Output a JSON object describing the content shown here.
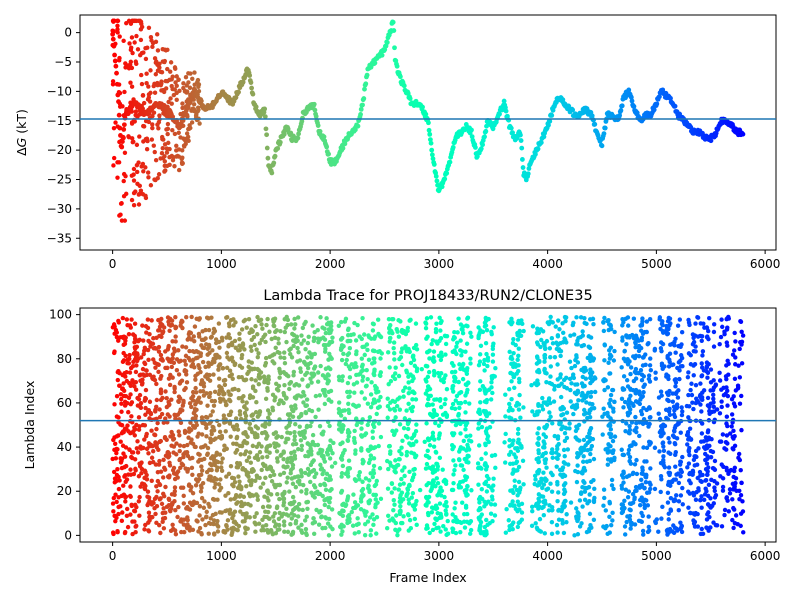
{
  "chart_data": [
    {
      "type": "scatter",
      "title": "",
      "xlabel": "",
      "ylabel": "ΔG (kT)",
      "xlim": [
        -300,
        6100
      ],
      "ylim": [
        -37,
        3
      ],
      "xticks": [
        0,
        1000,
        2000,
        3000,
        4000,
        5000,
        6000
      ],
      "yticks": [
        -35,
        -30,
        -25,
        -20,
        -15,
        -10,
        -5,
        0
      ],
      "hline": -14.7,
      "colormap": "rainbow (red → orange → yellow-green → cyan → blue → violet, early frames to late frames)",
      "n_frames": 5800,
      "trace_anchors": {
        "x": [
          0,
          40,
          80,
          120,
          200,
          300,
          400,
          500,
          620,
          750,
          850,
          950,
          1000,
          1100,
          1200,
          1250,
          1300,
          1350,
          1400,
          1430,
          1460,
          1500,
          1550,
          1600,
          1650,
          1700,
          1750,
          1800,
          1850,
          1900,
          1950,
          2000,
          2050,
          2100,
          2150,
          2200,
          2250,
          2300,
          2350,
          2400,
          2450,
          2500,
          2550,
          2580,
          2600,
          2650,
          2700,
          2750,
          2800,
          2850,
          2900,
          2950,
          3000,
          3050,
          3100,
          3150,
          3200,
          3250,
          3300,
          3350,
          3400,
          3450,
          3500,
          3550,
          3600,
          3650,
          3700,
          3750,
          3780,
          3800,
          3850,
          3900,
          3950,
          4000,
          4050,
          4100,
          4150,
          4200,
          4250,
          4300,
          4350,
          4400,
          4450,
          4500,
          4550,
          4600,
          4650,
          4700,
          4750,
          4800,
          4850,
          4900,
          4950,
          5000,
          5050,
          5100,
          5150,
          5200,
          5250,
          5300,
          5350,
          5400,
          5450,
          5500,
          5550,
          5600,
          5650,
          5700,
          5750,
          5800
        ],
        "y": [
          0,
          -8,
          -20,
          -14,
          -12,
          -14,
          -12,
          -13,
          -16,
          -10,
          -13,
          -12,
          -10,
          -12,
          -8,
          -6,
          -12,
          -14,
          -13,
          -22,
          -24,
          -20,
          -18,
          -16,
          -18,
          -18,
          -14,
          -13,
          -12,
          -17,
          -18,
          -22,
          -22,
          -20,
          -18,
          -17,
          -16,
          -12,
          -6,
          -5,
          -4,
          -3,
          0,
          2,
          -5,
          -8,
          -10,
          -12,
          -12,
          -13,
          -15,
          -22,
          -27,
          -25,
          -22,
          -18,
          -17,
          -16,
          -17,
          -21,
          -19,
          -15,
          -16,
          -14,
          -12,
          -16,
          -18,
          -17,
          -24,
          -25,
          -22,
          -20,
          -18,
          -16,
          -13,
          -11,
          -12,
          -13,
          -14,
          -14,
          -13,
          -14,
          -17,
          -19,
          -14,
          -14,
          -15,
          -11,
          -10,
          -13,
          -15,
          -14,
          -14,
          -12,
          -10,
          -11,
          -12,
          -14,
          -15,
          -16,
          -17,
          -17,
          -18,
          -18,
          -17,
          -15,
          -15,
          -16,
          -17,
          -17
        ]
      },
      "early_scatter": {
        "x_range": [
          0,
          800
        ],
        "y_range": [
          -32,
          2
        ]
      }
    },
    {
      "type": "scatter",
      "title": "Lambda Trace for PROJ18433/RUN2/CLONE35",
      "xlabel": "Frame Index",
      "ylabel": "Lambda Index",
      "xlim": [
        -300,
        6100
      ],
      "ylim": [
        -3,
        103
      ],
      "xticks": [
        0,
        1000,
        2000,
        3000,
        4000,
        5000,
        6000
      ],
      "yticks": [
        0,
        20,
        40,
        60,
        80,
        100
      ],
      "hline": 52,
      "colormap": "rainbow (same frame coloring as upper panel)",
      "n_frames": 5800,
      "value_range": [
        0,
        99
      ],
      "band_note": "lambda index sweeps over 0–99; after ~2000 frames points cluster into vertical bands with sparse gaps"
    }
  ]
}
